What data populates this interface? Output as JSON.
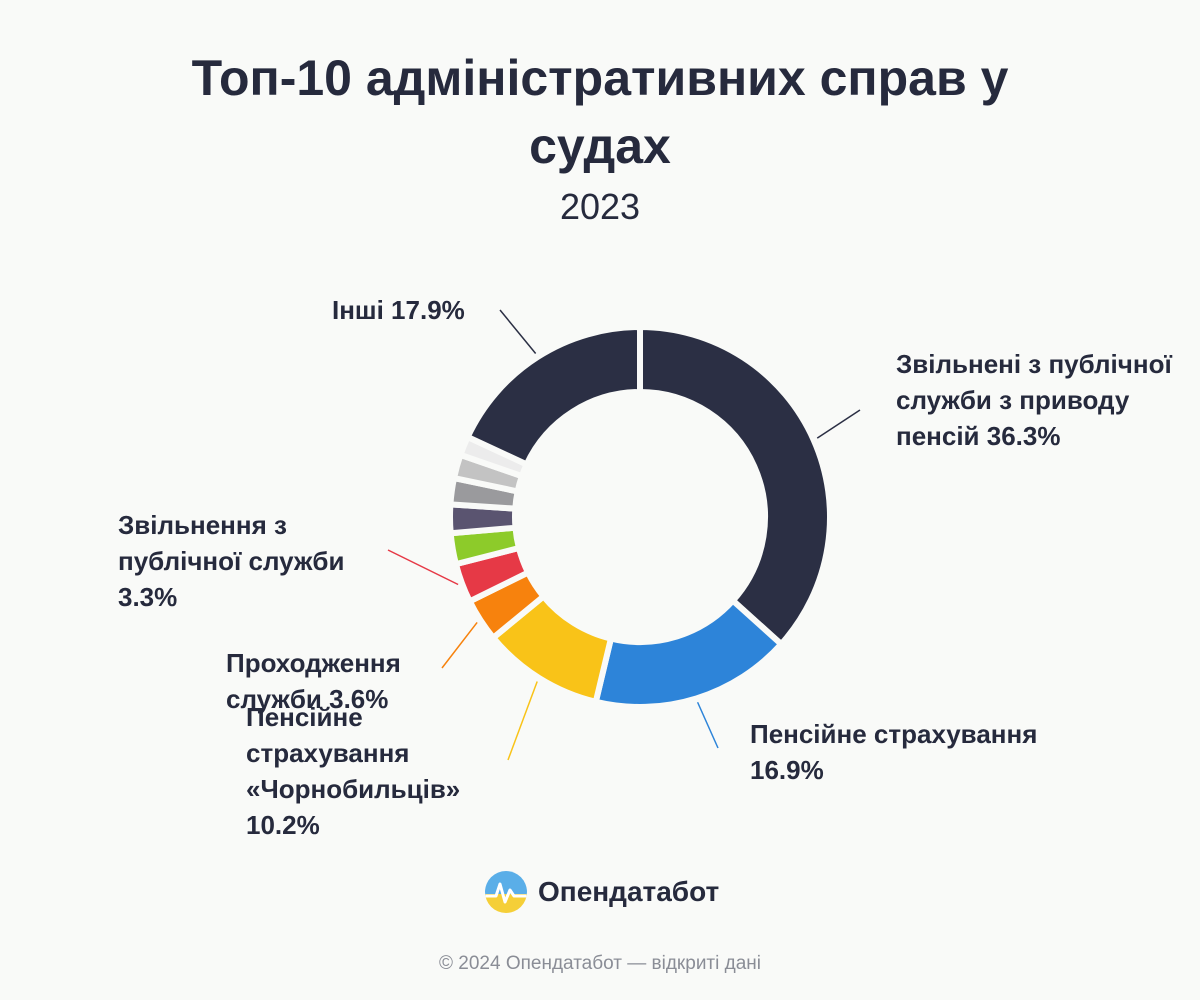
{
  "header": {
    "title": "Топ-10 адміністративних справ у судах",
    "subtitle": "2023"
  },
  "chart_data": {
    "type": "pie",
    "title": "Топ-10 адміністративних справ у судах",
    "subtitle": "2023",
    "categories": [
      "Звільнені з публічної служби з приводу пенсій",
      "Пенсійне страхування",
      "Пенсійне страхування «Чорнобильців»",
      "Проходження служби",
      "Звільнення з публічної служби",
      "",
      "",
      "",
      "",
      "",
      "Інші"
    ],
    "values": [
      36.3,
      16.9,
      10.2,
      3.6,
      3.3,
      2.6,
      2.4,
      2.2,
      2.0,
      1.6,
      17.9
    ],
    "colors": [
      "#2b2f44",
      "#2d84d9",
      "#f9c318",
      "#f7820d",
      "#e63946",
      "#8dcb2a",
      "#5a5470",
      "#9a9a9d",
      "#c3c3c3",
      "#ececec",
      "#2b2f44"
    ],
    "donut": true,
    "labels": [
      {
        "slice": 0,
        "text": "Звільнені з публічної служби з приводу пенсій 36.3%"
      },
      {
        "slice": 1,
        "text": "Пенсійне страхування 16.9%"
      },
      {
        "slice": 2,
        "text": "Пенсійне страхування «Чорнобильців» 10.2%"
      },
      {
        "slice": 3,
        "text": "Проходження служби 3.6%"
      },
      {
        "slice": 4,
        "text": "Звільнення з публічної служби 3.3%"
      },
      {
        "slice": 10,
        "text": "Інші 17.9%"
      }
    ]
  },
  "brand": {
    "name": "Опендатабот",
    "copyright": "© 2024 Опендатабот — відкриті дані"
  }
}
